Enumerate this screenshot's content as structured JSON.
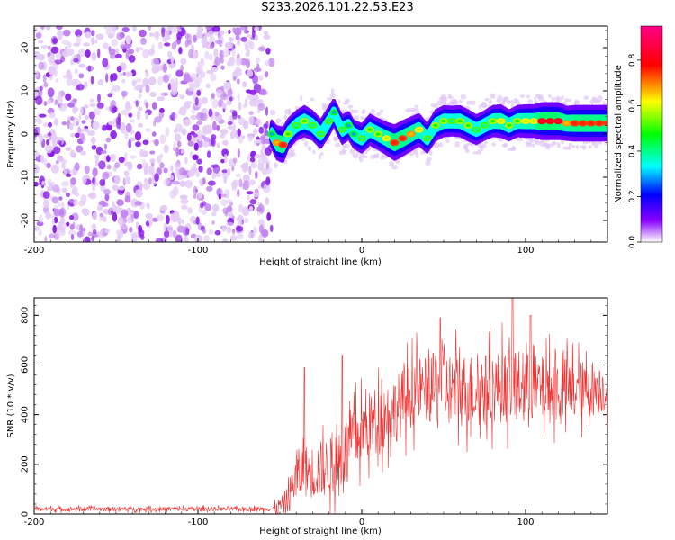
{
  "title": "S233.2026.101.22.53.E23",
  "chart_data": [
    {
      "type": "heatmap",
      "title": "S233.2026.101.22.53.E23",
      "xlabel": "Height of straight line (km)",
      "ylabel": "Frequency (Hz)",
      "xlim": [
        -200,
        150
      ],
      "ylim": [
        -25,
        25
      ],
      "xticks": [
        -200,
        -100,
        0,
        100
      ],
      "yticks": [
        -20,
        -10,
        0,
        10,
        20
      ],
      "noise_region_x": [
        -200,
        -55
      ],
      "ridge": {
        "x": [
          -55,
          -52,
          -48,
          -45,
          -40,
          -35,
          -30,
          -25,
          -20,
          -17,
          -12,
          -8,
          -5,
          0,
          5,
          10,
          15,
          20,
          25,
          30,
          35,
          40,
          45,
          50,
          55,
          60,
          65,
          70,
          75,
          80,
          85,
          90,
          95,
          100,
          105,
          110,
          115,
          120,
          125,
          130,
          135,
          140,
          145,
          150
        ],
        "y": [
          0,
          -2,
          -2.5,
          0,
          2,
          3,
          2,
          0,
          3,
          5,
          1,
          2,
          0,
          -1,
          1,
          0,
          -1,
          -2,
          -1,
          0,
          1,
          -1,
          2,
          3,
          3,
          3,
          2,
          1,
          2,
          3,
          3,
          2,
          3,
          3,
          3,
          3,
          3,
          3,
          2.5,
          2.5,
          2.5,
          2.5,
          2.5,
          2.5
        ],
        "amplitude": [
          0.3,
          0.7,
          0.8,
          0.5,
          0.4,
          0.5,
          0.4,
          0.4,
          0.4,
          0.3,
          0.4,
          0.3,
          0.3,
          0.4,
          0.5,
          0.5,
          0.6,
          0.8,
          0.8,
          0.7,
          0.6,
          0.4,
          0.5,
          0.5,
          0.4,
          0.5,
          0.5,
          0.4,
          0.4,
          0.5,
          0.6,
          0.5,
          0.5,
          0.6,
          0.6,
          0.9,
          0.9,
          0.9,
          0.7,
          0.8,
          0.8,
          0.8,
          0.8,
          0.8
        ]
      },
      "colorbar": {
        "label": "Normalized spectral amplitude",
        "range": [
          0,
          0.95
        ],
        "ticks": [
          "0.0",
          "0.2",
          "0.4",
          "0.6",
          "0.8"
        ]
      }
    },
    {
      "type": "line",
      "xlabel": "Height of straight line (km)",
      "ylabel": "SNR (10 * v/v)",
      "xlim": [
        -200,
        150
      ],
      "ylim": [
        0,
        870
      ],
      "xticks": [
        -200,
        -100,
        0,
        100
      ],
      "yticks": [
        0,
        200,
        400,
        600,
        800
      ],
      "color": "#ee3333",
      "series": [
        {
          "name": "SNR",
          "x": [
            -200,
            -150,
            -100,
            -60,
            -55,
            -50,
            -45,
            -42,
            -40,
            -38,
            -35,
            -30,
            -25,
            -20,
            -15,
            -12,
            -10,
            -8,
            -5,
            0,
            5,
            10,
            15,
            20,
            25,
            30,
            35,
            40,
            45,
            50,
            55,
            60,
            70,
            80,
            90,
            100,
            110,
            120,
            130,
            140,
            150
          ],
          "y": [
            20,
            20,
            20,
            20,
            20,
            30,
            60,
            120,
            150,
            160,
            170,
            170,
            180,
            190,
            200,
            220,
            250,
            280,
            300,
            330,
            360,
            390,
            400,
            420,
            450,
            480,
            500,
            500,
            510,
            510,
            500,
            500,
            500,
            510,
            520,
            510,
            500,
            500,
            500,
            500,
            500
          ],
          "noise_amplitude": [
            10,
            10,
            10,
            10,
            10,
            40,
            60,
            90,
            110,
            120,
            120,
            120,
            130,
            130,
            130,
            140,
            150,
            150,
            150,
            150,
            150,
            150,
            150,
            150,
            150,
            150,
            150,
            150,
            160,
            170,
            170,
            170,
            160,
            160,
            170,
            160,
            150,
            150,
            140,
            120,
            100
          ],
          "peaks": [
            {
              "x": -35,
              "y": 590
            },
            {
              "x": -12,
              "y": 640
            },
            {
              "x": 48,
              "y": 790
            },
            {
              "x": 92,
              "y": 870
            },
            {
              "x": 103,
              "y": 800
            }
          ]
        }
      ]
    }
  ]
}
